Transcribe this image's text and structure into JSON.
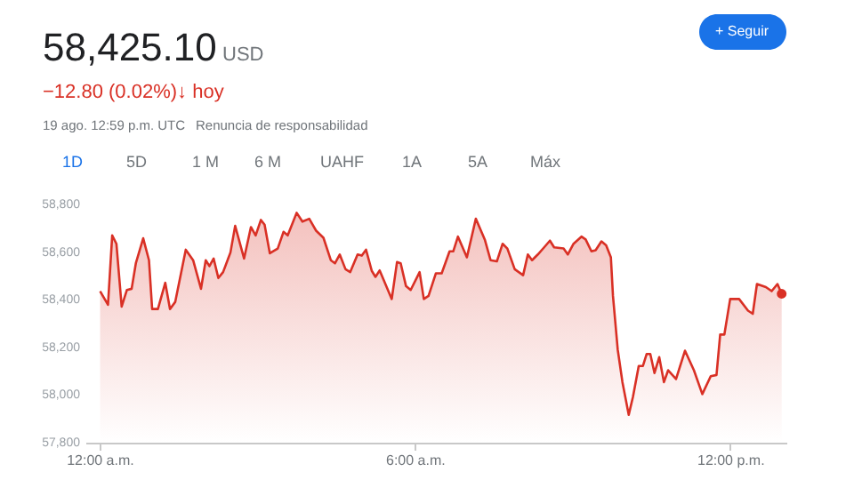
{
  "chart_data": {
    "type": "area",
    "title": "58,425.10",
    "annotations": [
      "USD",
      "−12.80 (0.02%)↓ hoy",
      "19 ago. 12:59 p.m. UTC",
      "Renuncia de responsabilidad",
      "1D",
      "5D",
      "1 M",
      "6 M",
      "UAHF",
      "1A",
      "5A",
      "Máx",
      "+ Seguir"
    ],
    "series": [
      {
        "color": "#d93025",
        "x": [
          0.01,
          0.16,
          0.24,
          0.32,
          0.42,
          0.52,
          0.61,
          0.69,
          0.83,
          0.94,
          1.0,
          1.11,
          1.25,
          1.34,
          1.44,
          1.64,
          1.78,
          1.93,
          2.02,
          2.09,
          2.17,
          2.26,
          2.35,
          2.49,
          2.58,
          2.75,
          2.88,
          2.97,
          3.07,
          3.14,
          3.24,
          3.39,
          3.5,
          3.58,
          3.75,
          3.86,
          3.99,
          4.12,
          4.26,
          4.4,
          4.48,
          4.57,
          4.68,
          4.77,
          4.91,
          4.99,
          5.07,
          5.18,
          5.25,
          5.33,
          5.56,
          5.66,
          5.73,
          5.83,
          5.92,
          6.09,
          6.17,
          6.26,
          6.4,
          6.51,
          6.66,
          6.73,
          6.82,
          6.99,
          7.16,
          7.33,
          7.44,
          7.56,
          7.67,
          7.76,
          7.9,
          8.06,
          8.15,
          8.23,
          8.34,
          8.46,
          8.57,
          8.65,
          8.83,
          8.91,
          9.02,
          9.17,
          9.25,
          9.36,
          9.44,
          9.55,
          9.64,
          9.73,
          9.77,
          9.86,
          9.95,
          10.07,
          10.15,
          10.26,
          10.34,
          10.41,
          10.48,
          10.56,
          10.65,
          10.74,
          10.82,
          10.97,
          11.14,
          11.31,
          11.47,
          11.63,
          11.74,
          11.81,
          11.89,
          12.0,
          12.17,
          12.34,
          12.43,
          12.51,
          12.68,
          12.79,
          12.9,
          12.98
        ],
        "values": [
          58436,
          58379,
          58670,
          58635,
          58371,
          58441,
          58446,
          58553,
          58658,
          58566,
          58361,
          58361,
          58471,
          58361,
          58391,
          58610,
          58566,
          58446,
          58566,
          58541,
          58573,
          58491,
          58516,
          58598,
          58710,
          58573,
          58705,
          58670,
          58735,
          58715,
          58595,
          58615,
          58685,
          58670,
          58765,
          58728,
          58740,
          58690,
          58660,
          58566,
          58553,
          58590,
          58528,
          58516,
          58590,
          58585,
          58610,
          58521,
          58496,
          58523,
          58403,
          58558,
          58553,
          58458,
          58441,
          58516,
          58403,
          58416,
          58511,
          58511,
          58603,
          58603,
          58665,
          58578,
          58740,
          58653,
          58566,
          58561,
          58635,
          58615,
          58528,
          58503,
          58590,
          58566,
          58590,
          58620,
          58648,
          58620,
          58615,
          58590,
          58635,
          58665,
          58653,
          58603,
          58608,
          58645,
          58628,
          58578,
          58416,
          58191,
          58054,
          57917,
          57992,
          58122,
          58122,
          58172,
          58172,
          58092,
          58159,
          58054,
          58104,
          58067,
          58186,
          58104,
          58004,
          58079,
          58084,
          58254,
          58254,
          58403,
          58403,
          58354,
          58341,
          58466,
          58453,
          58436,
          58466,
          58425
        ]
      },
      {
        "type": "scatter",
        "color": "#d93025",
        "x": [
          12.98
        ],
        "values": [
          58425
        ]
      }
    ],
    "xlim": [
      -0.27,
      13.07
    ],
    "xticks": [
      {
        "value": 0,
        "label": "12:00 a.m."
      },
      {
        "value": 6,
        "label": "6:00 a.m."
      },
      {
        "value": 12,
        "label": "12:00 p.m."
      }
    ],
    "ylim": [
      57800,
      58800
    ],
    "yticks": [
      {
        "value": 57800,
        "label": "57,800"
      },
      {
        "value": 58000,
        "label": "58,000"
      },
      {
        "value": 58200,
        "label": "58,200"
      },
      {
        "value": 58400,
        "label": "58,400"
      },
      {
        "value": 58600,
        "label": "58,600"
      },
      {
        "value": 58800,
        "label": "58,800"
      }
    ],
    "grid": false
  }
}
